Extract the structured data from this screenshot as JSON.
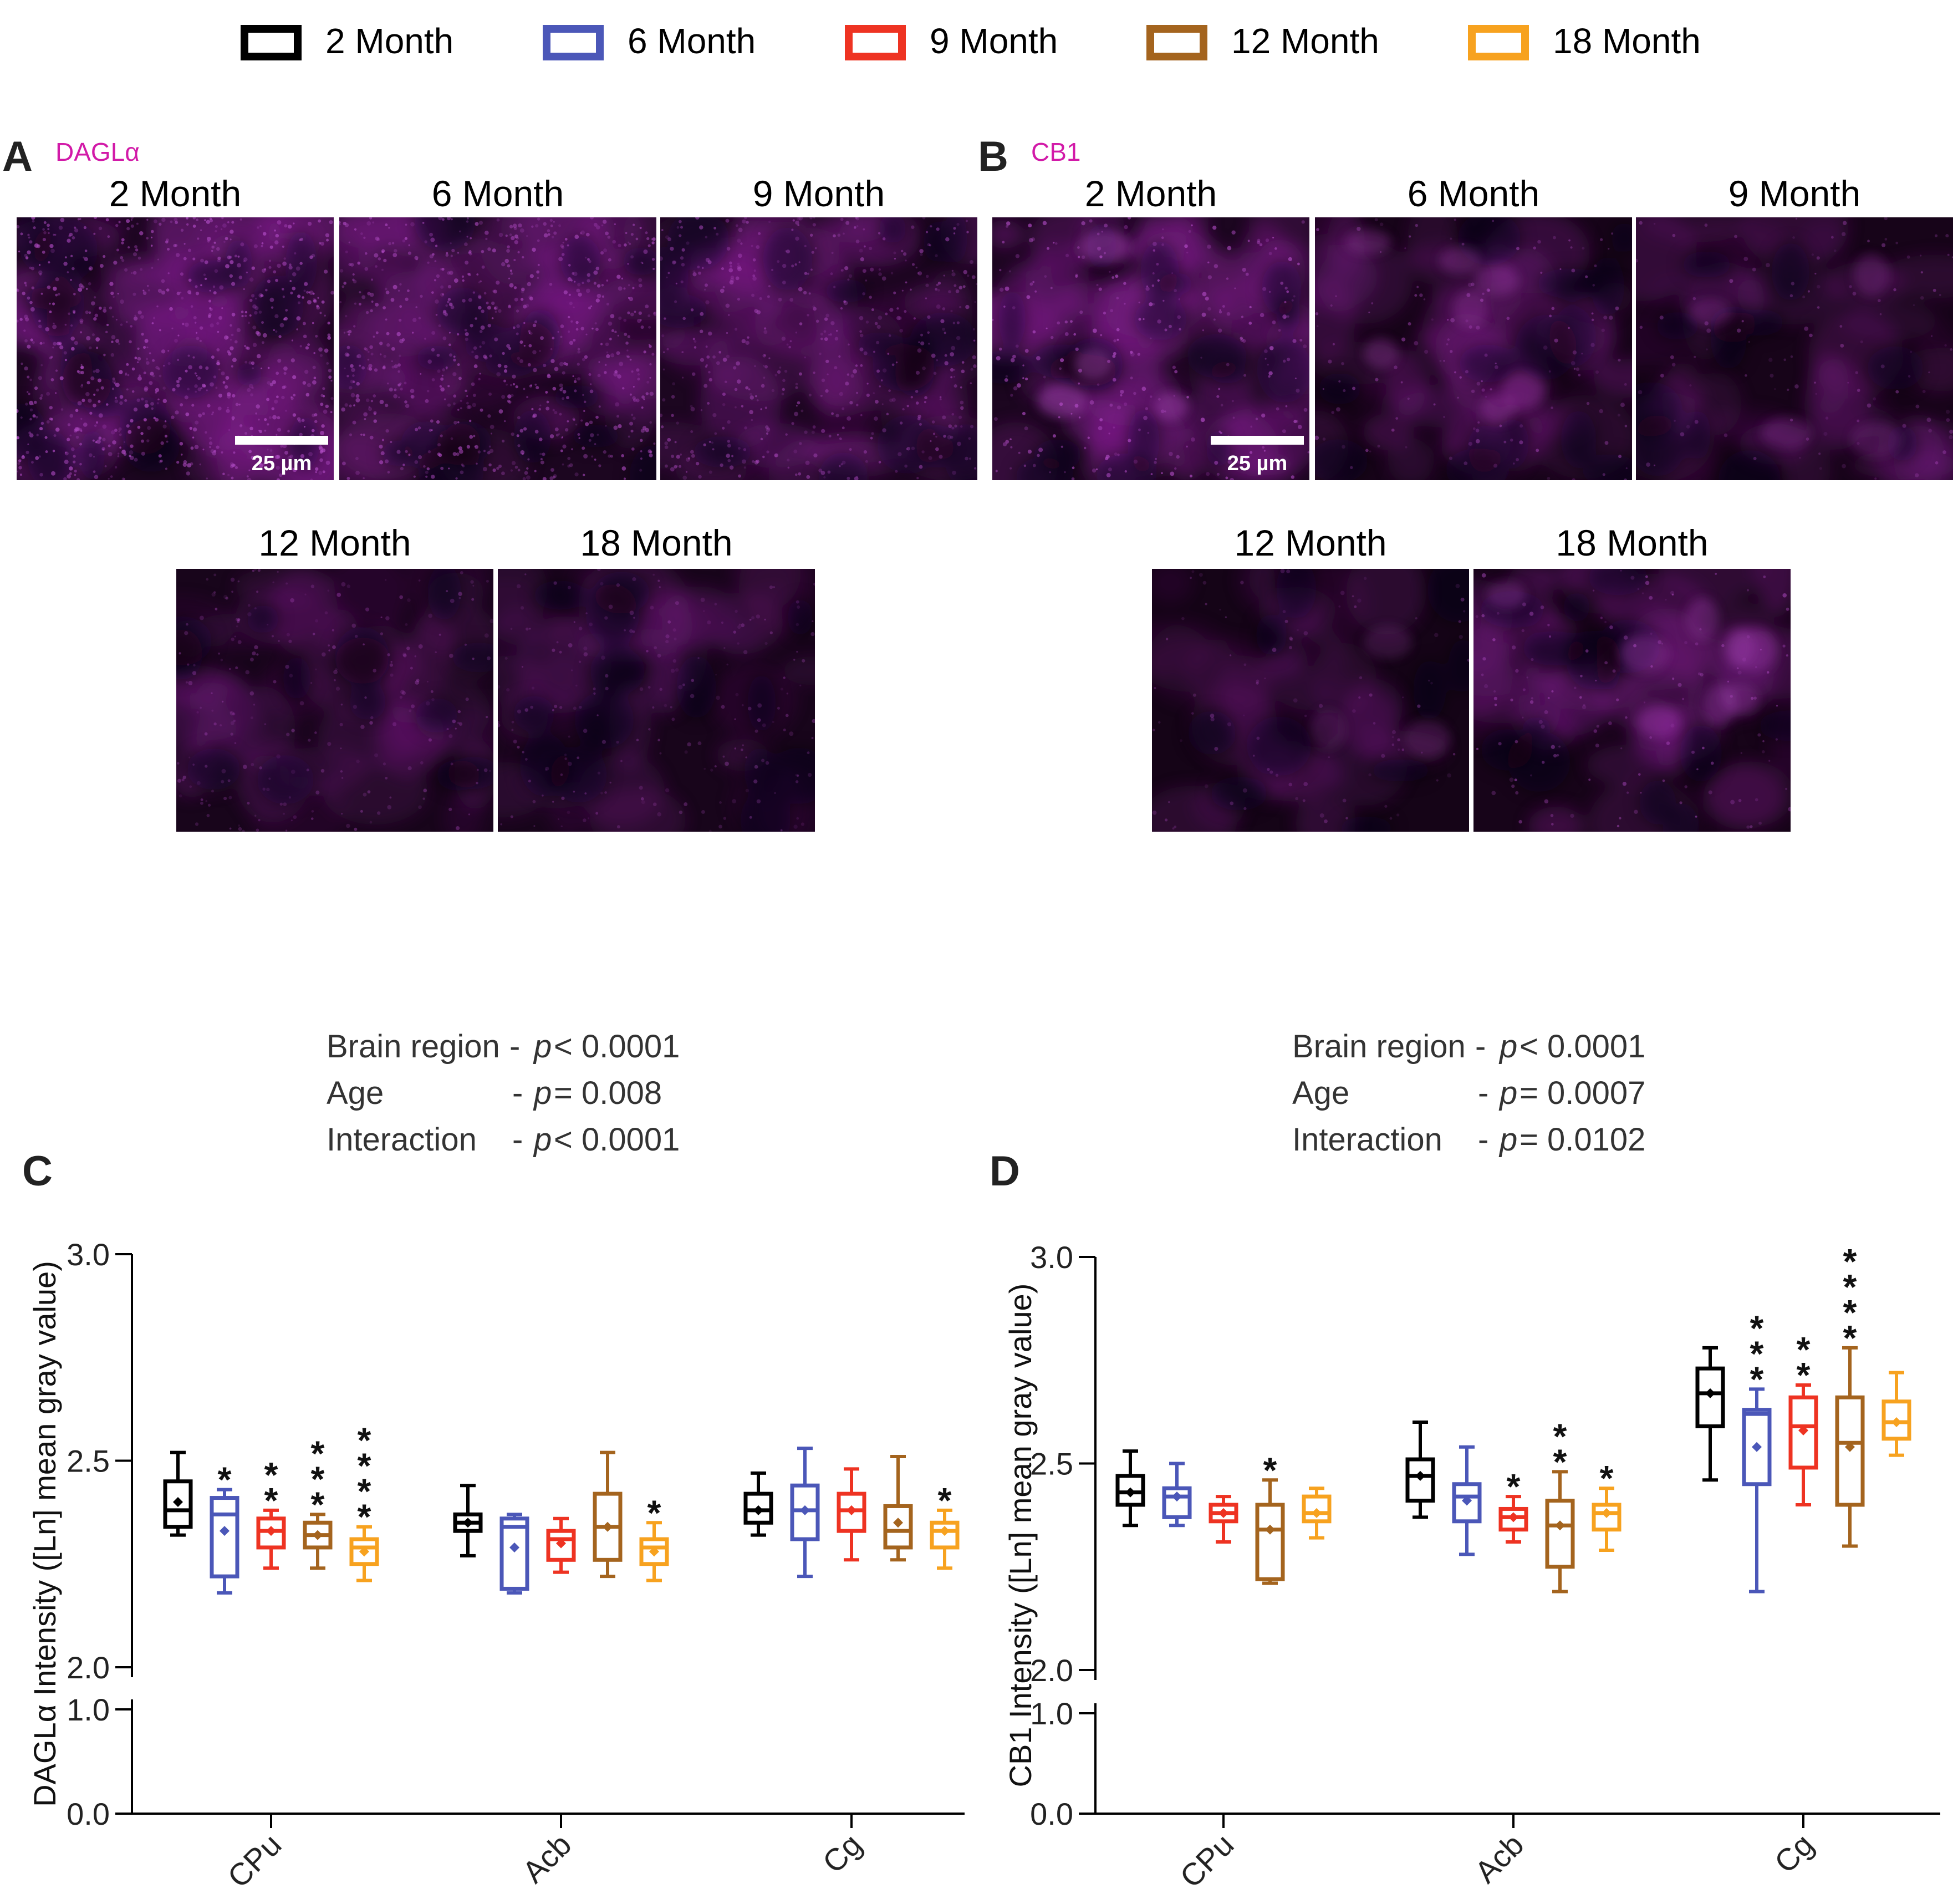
{
  "colors": {
    "m2": "#000000",
    "m6": "#4b57b8",
    "m9": "#ee3322",
    "m12": "#a4641e",
    "m18": "#f7a21f",
    "magenta": "#d21aa8",
    "micro_base": "#1c0620",
    "micro_spot": "#7a1d86"
  },
  "legend": [
    {
      "label": "2 Month",
      "key": "m2"
    },
    {
      "label": "6 Month",
      "key": "m6"
    },
    {
      "label": "9 Month",
      "key": "m9"
    },
    {
      "label": "12 Month",
      "key": "m12"
    },
    {
      "label": "18 Month",
      "key": "m18"
    }
  ],
  "panel_a": {
    "letter": "A",
    "marker": "DAGLα",
    "images": [
      "2 Month",
      "6 Month",
      "9 Month",
      "12 Month",
      "18 Month"
    ],
    "scale_label": "25 µm"
  },
  "panel_b": {
    "letter": "B",
    "marker": "CB1",
    "images": [
      "2 Month",
      "6 Month",
      "9 Month",
      "12 Month",
      "18 Month"
    ],
    "scale_label": "25 µm"
  },
  "chart_data": [
    {
      "panel": "C",
      "type": "box",
      "ylabel": "DAGLα Intensity ([Ln] mean gray value)",
      "xlabel": "",
      "categories": [
        "CPu",
        "Acb",
        "Cg"
      ],
      "axis_break": {
        "lower": [
          0.0,
          1.0
        ],
        "upper": [
          2.0,
          3.0
        ]
      },
      "yticks": [
        "3.0",
        "2.5",
        "2.0",
        "1.0",
        "0.0"
      ],
      "stats": [
        {
          "label": "Brain region",
          "dash": "-",
          "p": "p",
          "rel": "< 0.0001"
        },
        {
          "label": "Age",
          "dash": "-",
          "p": "p",
          "rel": "= 0.008"
        },
        {
          "label": "Interaction",
          "dash": "-",
          "p": "p",
          "rel": "< 0.0001"
        }
      ],
      "series": [
        {
          "name": "2 Month",
          "key": "m2",
          "boxes": [
            {
              "min": 2.32,
              "q1": 2.34,
              "median": 2.38,
              "q3": 2.45,
              "max": 2.52,
              "mean": 2.4,
              "sig": ""
            },
            {
              "min": 2.27,
              "q1": 2.33,
              "median": 2.35,
              "q3": 2.37,
              "max": 2.44,
              "mean": 2.35,
              "sig": ""
            },
            {
              "min": 2.32,
              "q1": 2.35,
              "median": 2.38,
              "q3": 2.42,
              "max": 2.47,
              "mean": 2.38,
              "sig": ""
            }
          ]
        },
        {
          "name": "6 Month",
          "key": "m6",
          "boxes": [
            {
              "min": 2.18,
              "q1": 2.22,
              "median": 2.37,
              "q3": 2.41,
              "max": 2.43,
              "mean": 2.33,
              "sig": "*"
            },
            {
              "min": 2.18,
              "q1": 2.19,
              "median": 2.34,
              "q3": 2.36,
              "max": 2.37,
              "mean": 2.29,
              "sig": ""
            },
            {
              "min": 2.22,
              "q1": 2.31,
              "median": 2.38,
              "q3": 2.44,
              "max": 2.53,
              "mean": 2.38,
              "sig": ""
            }
          ]
        },
        {
          "name": "9 Month",
          "key": "m9",
          "boxes": [
            {
              "min": 2.24,
              "q1": 2.29,
              "median": 2.33,
              "q3": 2.36,
              "max": 2.38,
              "mean": 2.33,
              "sig": "**"
            },
            {
              "min": 2.23,
              "q1": 2.26,
              "median": 2.31,
              "q3": 2.33,
              "max": 2.36,
              "mean": 2.3,
              "sig": ""
            },
            {
              "min": 2.26,
              "q1": 2.33,
              "median": 2.38,
              "q3": 2.42,
              "max": 2.48,
              "mean": 2.38,
              "sig": ""
            }
          ]
        },
        {
          "name": "12 Month",
          "key": "m12",
          "boxes": [
            {
              "min": 2.24,
              "q1": 2.29,
              "median": 2.32,
              "q3": 2.35,
              "max": 2.37,
              "mean": 2.32,
              "sig": "***"
            },
            {
              "min": 2.22,
              "q1": 2.26,
              "median": 2.34,
              "q3": 2.42,
              "max": 2.52,
              "mean": 2.34,
              "sig": ""
            },
            {
              "min": 2.26,
              "q1": 2.29,
              "median": 2.33,
              "q3": 2.39,
              "max": 2.51,
              "mean": 2.35,
              "sig": ""
            }
          ]
        },
        {
          "name": "18 Month",
          "key": "m18",
          "boxes": [
            {
              "min": 2.21,
              "q1": 2.25,
              "median": 2.29,
              "q3": 2.31,
              "max": 2.34,
              "mean": 2.28,
              "sig": "****"
            },
            {
              "min": 2.21,
              "q1": 2.25,
              "median": 2.29,
              "q3": 2.31,
              "max": 2.35,
              "mean": 2.28,
              "sig": "*"
            },
            {
              "min": 2.24,
              "q1": 2.29,
              "median": 2.33,
              "q3": 2.35,
              "max": 2.38,
              "mean": 2.33,
              "sig": "*"
            }
          ]
        }
      ]
    },
    {
      "panel": "D",
      "type": "box",
      "ylabel": "CB1 Intensity ([Ln] mean gray value)",
      "xlabel": "",
      "categories": [
        "CPu",
        "Acb",
        "Cg"
      ],
      "axis_break": {
        "lower": [
          0.0,
          1.0
        ],
        "upper": [
          2.0,
          3.0
        ]
      },
      "yticks": [
        "3.0",
        "2.5",
        "2.0",
        "1.0",
        "0.0"
      ],
      "stats": [
        {
          "label": "Brain region",
          "dash": "-",
          "p": "p",
          "rel": "< 0.0001"
        },
        {
          "label": "Age",
          "dash": "-",
          "p": "p",
          "rel": "= 0.0007"
        },
        {
          "label": "Interaction",
          "dash": "-",
          "p": "p",
          "rel": "= 0.0102"
        }
      ],
      "series": [
        {
          "name": "2 Month",
          "key": "m2",
          "boxes": [
            {
              "min": 2.35,
              "q1": 2.4,
              "median": 2.43,
              "q3": 2.47,
              "max": 2.53,
              "mean": 2.43,
              "sig": ""
            },
            {
              "min": 2.37,
              "q1": 2.41,
              "median": 2.47,
              "q3": 2.51,
              "max": 2.6,
              "mean": 2.47,
              "sig": ""
            },
            {
              "min": 2.46,
              "q1": 2.59,
              "median": 2.67,
              "q3": 2.73,
              "max": 2.78,
              "mean": 2.67,
              "sig": ""
            }
          ]
        },
        {
          "name": "6 Month",
          "key": "m6",
          "boxes": [
            {
              "min": 2.35,
              "q1": 2.37,
              "median": 2.42,
              "q3": 2.44,
              "max": 2.5,
              "mean": 2.42,
              "sig": ""
            },
            {
              "min": 2.28,
              "q1": 2.36,
              "median": 2.42,
              "q3": 2.45,
              "max": 2.54,
              "mean": 2.41,
              "sig": ""
            },
            {
              "min": 2.19,
              "q1": 2.45,
              "median": 2.62,
              "q3": 2.63,
              "max": 2.68,
              "mean": 2.54,
              "sig": "***"
            }
          ]
        },
        {
          "name": "9 Month",
          "key": "m9",
          "boxes": [
            {
              "min": 2.31,
              "q1": 2.36,
              "median": 2.38,
              "q3": 2.4,
              "max": 2.42,
              "mean": 2.38,
              "sig": ""
            },
            {
              "min": 2.31,
              "q1": 2.34,
              "median": 2.37,
              "q3": 2.39,
              "max": 2.42,
              "mean": 2.37,
              "sig": "*"
            },
            {
              "min": 2.4,
              "q1": 2.49,
              "median": 2.59,
              "q3": 2.66,
              "max": 2.69,
              "mean": 2.58,
              "sig": "**"
            }
          ]
        },
        {
          "name": "12 Month",
          "key": "m12",
          "boxes": [
            {
              "min": 2.21,
              "q1": 2.22,
              "median": 2.34,
              "q3": 2.4,
              "max": 2.46,
              "mean": 2.34,
              "sig": "*"
            },
            {
              "min": 2.19,
              "q1": 2.25,
              "median": 2.35,
              "q3": 2.41,
              "max": 2.48,
              "mean": 2.35,
              "sig": "**"
            },
            {
              "min": 2.3,
              "q1": 2.4,
              "median": 2.55,
              "q3": 2.66,
              "max": 2.78,
              "mean": 2.54,
              "sig": "****"
            }
          ]
        },
        {
          "name": "18 Month",
          "key": "m18",
          "boxes": [
            {
              "min": 2.32,
              "q1": 2.36,
              "median": 2.38,
              "q3": 2.42,
              "max": 2.44,
              "mean": 2.38,
              "sig": ""
            },
            {
              "min": 2.29,
              "q1": 2.34,
              "median": 2.38,
              "q3": 2.4,
              "max": 2.44,
              "mean": 2.38,
              "sig": "*"
            },
            {
              "min": 2.52,
              "q1": 2.56,
              "median": 2.6,
              "q3": 2.65,
              "max": 2.72,
              "mean": 2.6,
              "sig": ""
            }
          ]
        }
      ]
    }
  ]
}
